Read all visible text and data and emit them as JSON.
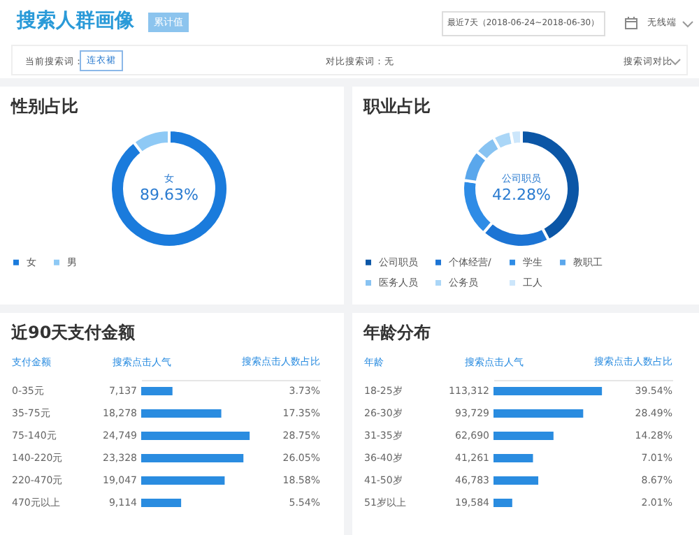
{
  "chart_data": [
    {
      "type": "other",
      "title": "搜索人群画像",
      "annotations": [
        "累计值",
        "最近7天（2018-06-24~2018-06-30）",
        "无线端",
        "当前搜索词：",
        "连衣裙",
        "对比搜索词：无",
        "搜索词对比"
      ]
    },
    {
      "type": "donut",
      "title": "性别占比",
      "categories": [
        "女",
        "男"
      ],
      "values": [
        89.63,
        10.37
      ],
      "colors": [
        "#1a7bdc",
        "#8ec9f5"
      ],
      "value_labels": [
        "89.63%",
        null
      ],
      "legend": "bottom"
    },
    {
      "type": "donut",
      "title": "职业占比",
      "categories": [
        "公司职员",
        "个体经营/",
        "学生",
        "教职工",
        "医务人员",
        "公务员",
        "工人"
      ],
      "values": [
        42.28,
        19,
        16,
        8.72,
        6,
        5,
        3
      ],
      "colors": [
        "#0b56a6",
        "#1c74d4",
        "#2e8ce6",
        "#5aa7ec",
        "#88c3f2",
        "#aad6f7",
        "#cce6fb"
      ],
      "value_labels": [
        "42.28%",
        null,
        null,
        null,
        null,
        null,
        null
      ],
      "legend": "bottom"
    },
    {
      "type": "bar",
      "orientation": "horizontal",
      "title": "近90天支付金额",
      "ylabel": "支付金额",
      "xlabel": "搜索点击人气",
      "categories": [
        "0-35元",
        "35-75元",
        "75-140元",
        "140-220元",
        "220-470元",
        "470元以上"
      ],
      "values": [
        7137,
        18278,
        24749,
        23328,
        19047,
        9114
      ],
      "value_labels": [
        "7,137",
        "18,278",
        "24,749",
        "23,328",
        "19,047",
        "9,114"
      ],
      "color": "#2a8ce0",
      "tick_labels": "y",
      "annotations": [
        "搜索点击人数占比",
        "3.73%",
        "17.35%",
        "28.75%",
        "26.05%",
        "18.58%",
        "5.54%"
      ]
    },
    {
      "type": "bar",
      "orientation": "horizontal",
      "title": "年龄分布",
      "ylabel": "年龄",
      "xlabel": "搜索点击人气",
      "categories": [
        "18-25岁",
        "26-30岁",
        "31-35岁",
        "36-40岁",
        "41-50岁",
        "51岁以上"
      ],
      "values": [
        113312,
        93729,
        62690,
        41261,
        46783,
        19584
      ],
      "value_labels": [
        "113,312",
        "93,729",
        "62,690",
        "41,261",
        "46,783",
        "19,584"
      ],
      "color": "#2a8ce0",
      "tick_labels": "y",
      "annotations": [
        "搜索点击人数占比",
        "39.54%",
        "28.49%",
        "14.28%",
        "7.01%",
        "8.67%",
        "2.01%"
      ]
    }
  ]
}
